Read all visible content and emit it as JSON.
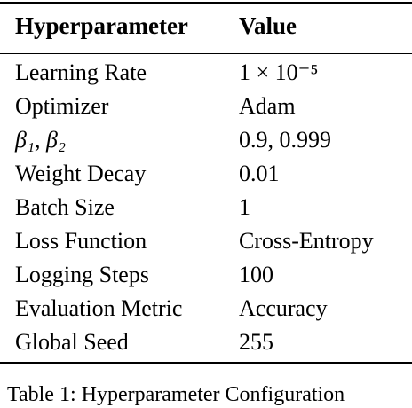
{
  "table": {
    "headers": [
      "Hyperparameter",
      "Value"
    ],
    "rows": [
      [
        "Learning Rate",
        "1 × 10⁻⁵"
      ],
      [
        "Optimizer",
        "Adam"
      ],
      [
        "β₁, β₂",
        "0.9, 0.999"
      ],
      [
        "Weight Decay",
        "0.01"
      ],
      [
        "Batch Size",
        "1"
      ],
      [
        "Loss Function",
        "Cross-Entropy"
      ],
      [
        "Logging Steps",
        "100"
      ],
      [
        "Evaluation Metric",
        "Accuracy"
      ],
      [
        "Global Seed",
        "255"
      ]
    ]
  },
  "caption": "Table 1: Hyperparameter Configuration"
}
